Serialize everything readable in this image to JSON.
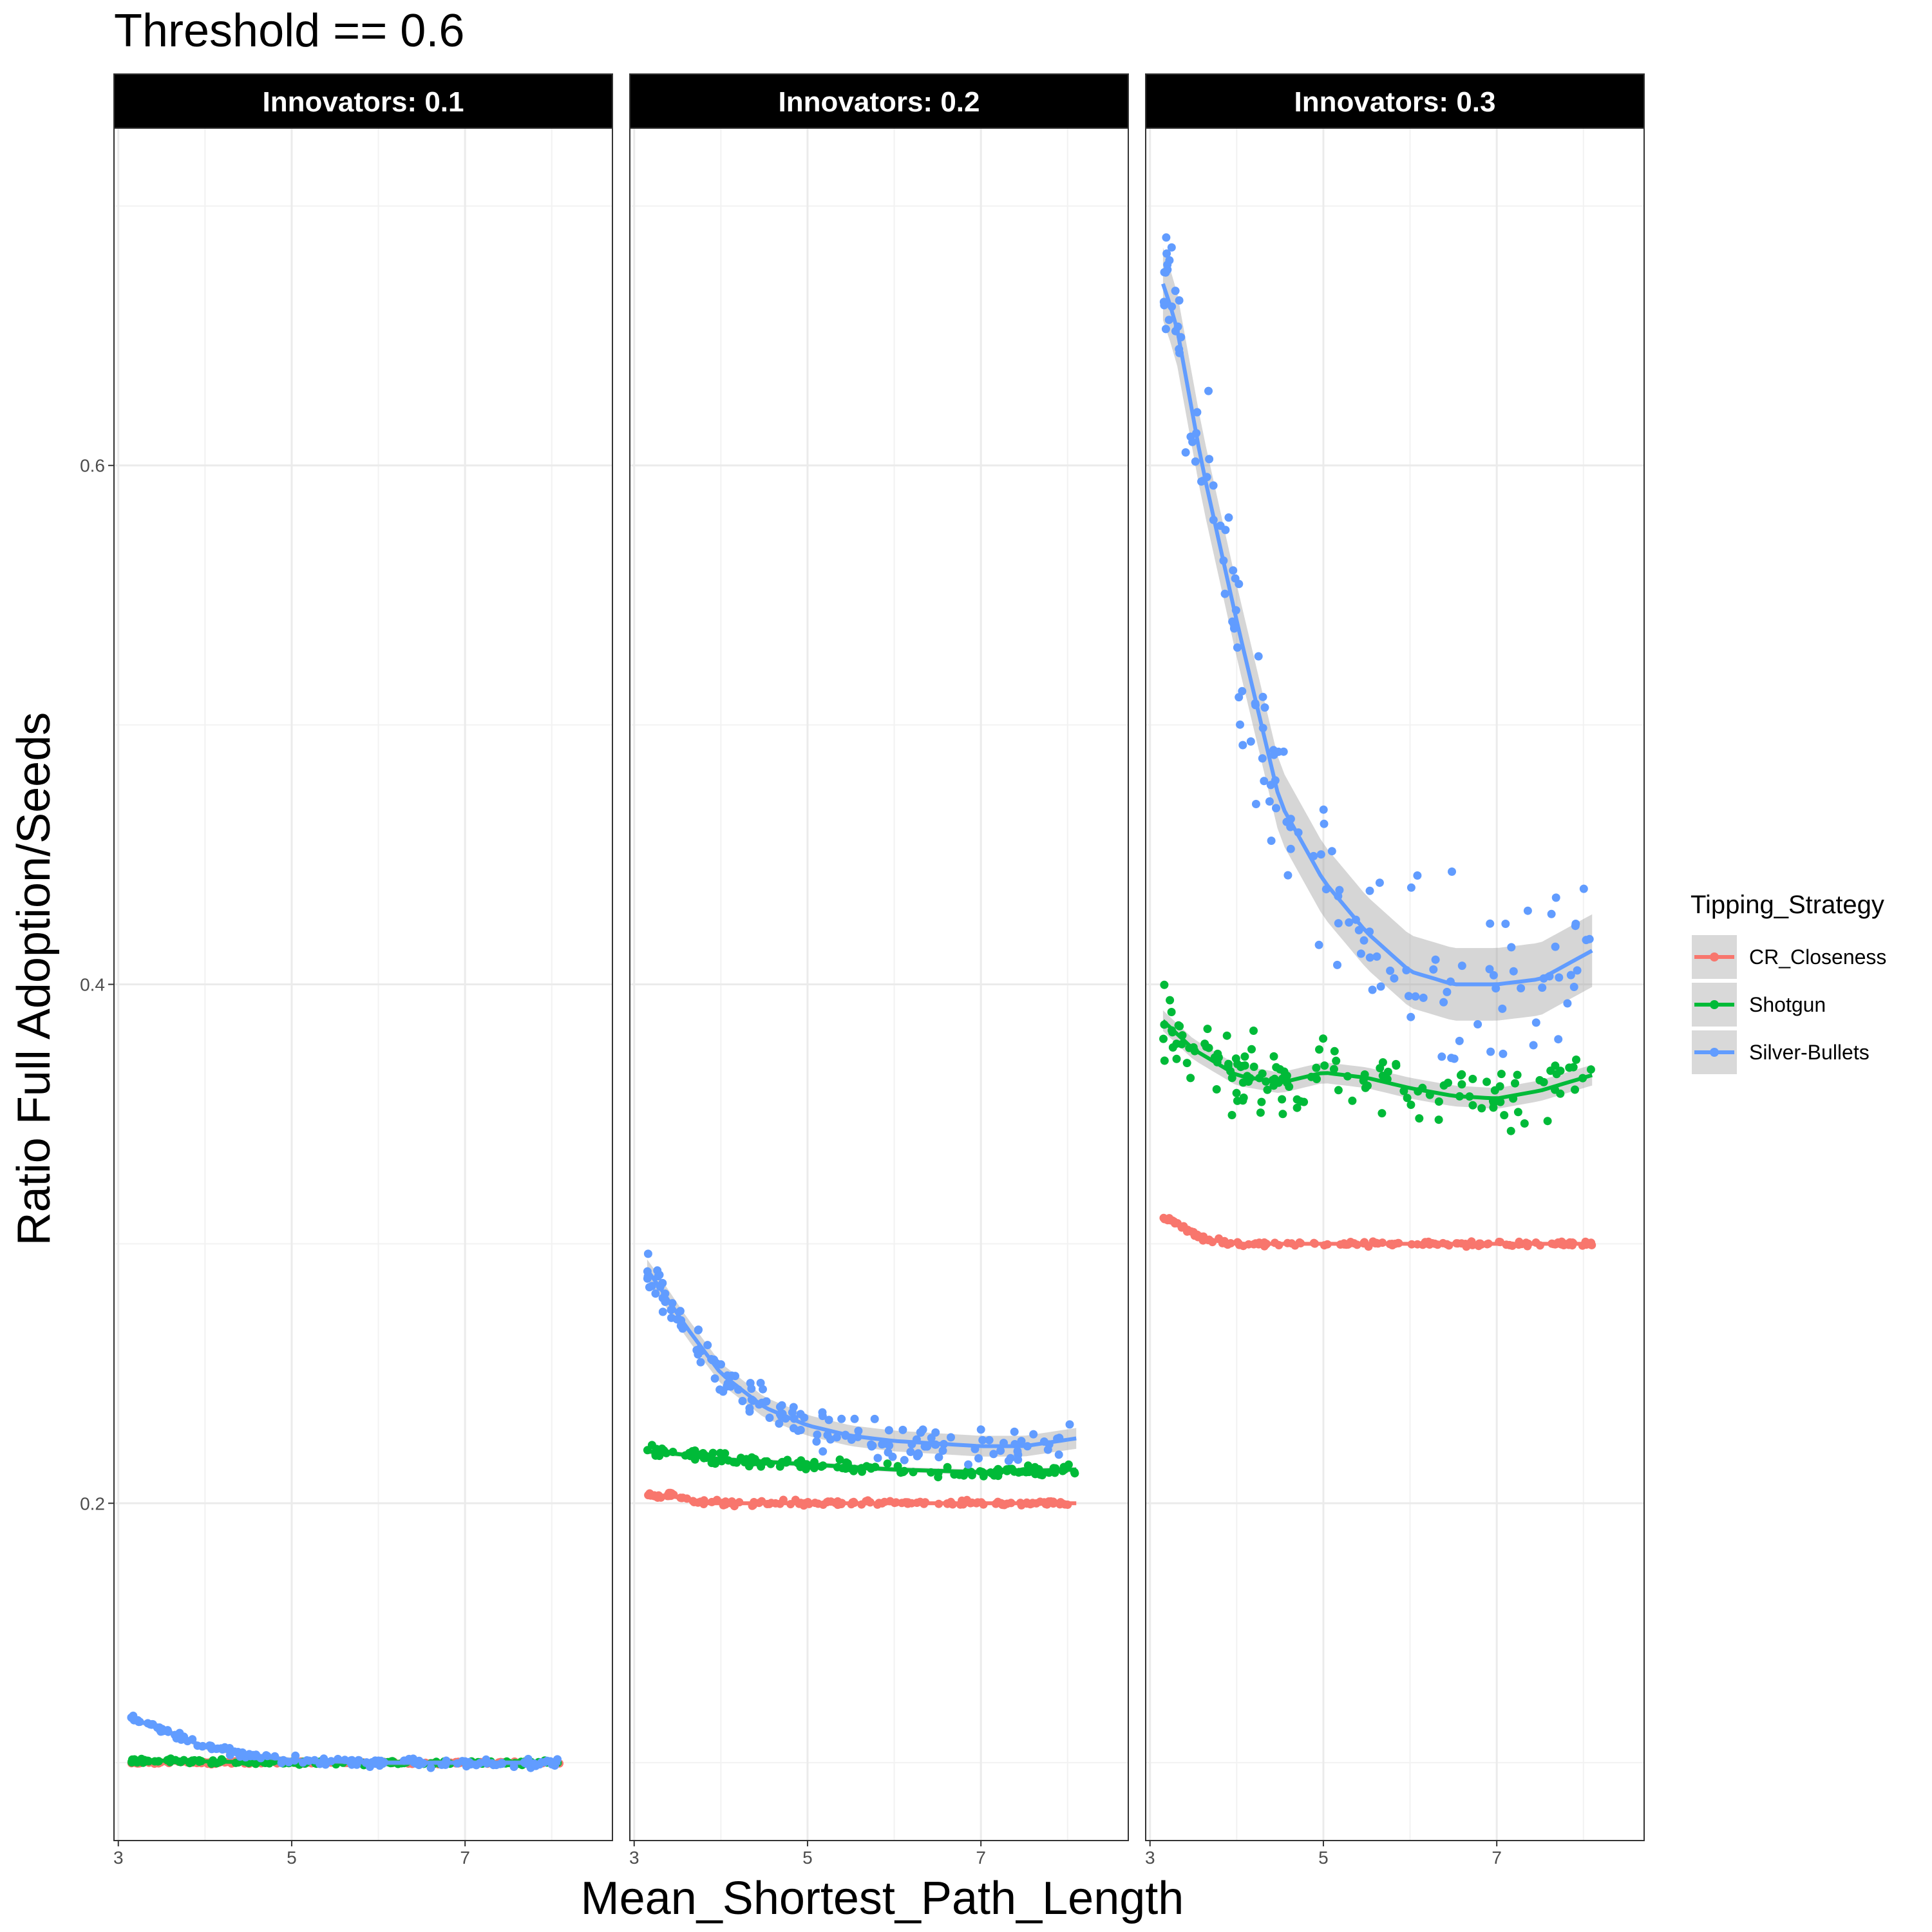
{
  "chart_data": {
    "type": "scatter",
    "title": "Threshold == 0.6",
    "xlabel": "Mean_Shortest_Path_Length",
    "ylabel": "Ratio Full Adoption/Seeds",
    "x_ticks": [
      3,
      5,
      7
    ],
    "x_tick_labels": [
      "3",
      "5",
      "7"
    ],
    "xlim": [
      2.95,
      8.7
    ],
    "y_ticks": [
      0.2,
      0.4,
      0.6
    ],
    "y_tick_labels": [
      "0.2",
      "0.4",
      "0.6"
    ],
    "ylim": [
      0.07,
      0.73
    ],
    "grid": true,
    "smoother": "loess with gray confidence band",
    "legend": {
      "title": "Tipping_Strategy",
      "position": "right",
      "entries": [
        {
          "label": "CR_Closeness",
          "color": "#F8766D"
        },
        {
          "label": "Shotgun",
          "color": "#00BA38"
        },
        {
          "label": "Silver-Bullets",
          "color": "#619CFF"
        }
      ]
    },
    "panels": [
      {
        "label": "Innovators: 0.1",
        "series": [
          {
            "name": "CR_Closeness",
            "color": "#F8766D",
            "x_range": [
              3.15,
              8.1
            ],
            "trend": [
              [
                3.15,
                0.1
              ],
              [
                4.0,
                0.1
              ],
              [
                5.0,
                0.1
              ],
              [
                6.0,
                0.1
              ],
              [
                7.0,
                0.1
              ],
              [
                8.1,
                0.1
              ]
            ],
            "spread": 0.0005,
            "band": 0
          },
          {
            "name": "Shotgun",
            "color": "#00BA38",
            "x_range": [
              3.15,
              8.1
            ],
            "trend": [
              [
                3.15,
                0.101
              ],
              [
                4.0,
                0.1005
              ],
              [
                5.0,
                0.1
              ],
              [
                6.0,
                0.1
              ],
              [
                7.0,
                0.1
              ],
              [
                8.1,
                0.1
              ]
            ],
            "spread": 0.0008,
            "band": 0
          },
          {
            "name": "Silver-Bullets",
            "color": "#619CFF",
            "x_range": [
              3.15,
              8.1
            ],
            "trend": [
              [
                3.15,
                0.117
              ],
              [
                3.5,
                0.113
              ],
              [
                4.0,
                0.106
              ],
              [
                4.5,
                0.103
              ],
              [
                5.0,
                0.101
              ],
              [
                6.0,
                0.1
              ],
              [
                7.0,
                0.1
              ],
              [
                8.1,
                0.1
              ]
            ],
            "spread": 0.0015,
            "band": 0.001
          }
        ]
      },
      {
        "label": "Innovators: 0.2",
        "series": [
          {
            "name": "CR_Closeness",
            "color": "#F8766D",
            "x_range": [
              3.15,
              8.1
            ],
            "trend": [
              [
                3.15,
                0.203
              ],
              [
                3.4,
                0.203
              ],
              [
                3.8,
                0.2
              ],
              [
                5.0,
                0.2
              ],
              [
                6.0,
                0.2
              ],
              [
                7.0,
                0.2
              ],
              [
                8.1,
                0.2
              ]
            ],
            "spread": 0.001,
            "band": 0
          },
          {
            "name": "Shotgun",
            "color": "#00BA38",
            "x_range": [
              3.15,
              8.1
            ],
            "trend": [
              [
                3.15,
                0.22
              ],
              [
                3.5,
                0.219
              ],
              [
                4.0,
                0.217
              ],
              [
                5.0,
                0.215
              ],
              [
                6.0,
                0.213
              ],
              [
                7.0,
                0.212
              ],
              [
                8.1,
                0.213
              ]
            ],
            "spread": 0.002,
            "band": 0.001
          },
          {
            "name": "Silver-Bullets",
            "color": "#619CFF",
            "x_range": [
              3.15,
              8.1
            ],
            "trend": [
              [
                3.15,
                0.29
              ],
              [
                3.3,
                0.283
              ],
              [
                3.6,
                0.268
              ],
              [
                4.0,
                0.25
              ],
              [
                4.5,
                0.237
              ],
              [
                5.0,
                0.23
              ],
              [
                5.5,
                0.226
              ],
              [
                6.0,
                0.224
              ],
              [
                6.5,
                0.223
              ],
              [
                7.0,
                0.222
              ],
              [
                7.5,
                0.222
              ],
              [
                8.1,
                0.225
              ]
            ],
            "spread": 0.007,
            "band": 0.004
          }
        ]
      },
      {
        "label": "Innovators: 0.3",
        "series": [
          {
            "name": "CR_Closeness",
            "color": "#F8766D",
            "x_range": [
              3.15,
              8.1
            ],
            "trend": [
              [
                3.15,
                0.31
              ],
              [
                3.3,
                0.308
              ],
              [
                3.6,
                0.302
              ],
              [
                4.0,
                0.3
              ],
              [
                5.0,
                0.3
              ],
              [
                6.0,
                0.3
              ],
              [
                7.0,
                0.3
              ],
              [
                8.1,
                0.3
              ]
            ],
            "spread": 0.001,
            "band": 0
          },
          {
            "name": "Shotgun",
            "color": "#00BA38",
            "x_range": [
              3.15,
              8.1
            ],
            "trend": [
              [
                3.15,
                0.386
              ],
              [
                3.5,
                0.375
              ],
              [
                4.0,
                0.365
              ],
              [
                4.5,
                0.362
              ],
              [
                5.0,
                0.366
              ],
              [
                5.5,
                0.364
              ],
              [
                6.0,
                0.36
              ],
              [
                6.5,
                0.357
              ],
              [
                7.0,
                0.356
              ],
              [
                7.5,
                0.359
              ],
              [
                8.1,
                0.365
              ]
            ],
            "spread": 0.012,
            "band": 0.004
          },
          {
            "name": "Silver-Bullets",
            "color": "#619CFF",
            "x_range": [
              3.15,
              8.1
            ],
            "trend": [
              [
                3.15,
                0.67
              ],
              [
                3.3,
                0.655
              ],
              [
                3.6,
                0.6
              ],
              [
                4.0,
                0.54
              ],
              [
                4.5,
                0.47
              ],
              [
                5.0,
                0.44
              ],
              [
                5.5,
                0.42
              ],
              [
                6.0,
                0.405
              ],
              [
                6.5,
                0.4
              ],
              [
                7.0,
                0.4
              ],
              [
                7.5,
                0.402
              ],
              [
                8.1,
                0.413
              ]
            ],
            "spread": 0.03,
            "band": 0.014
          }
        ]
      }
    ]
  }
}
